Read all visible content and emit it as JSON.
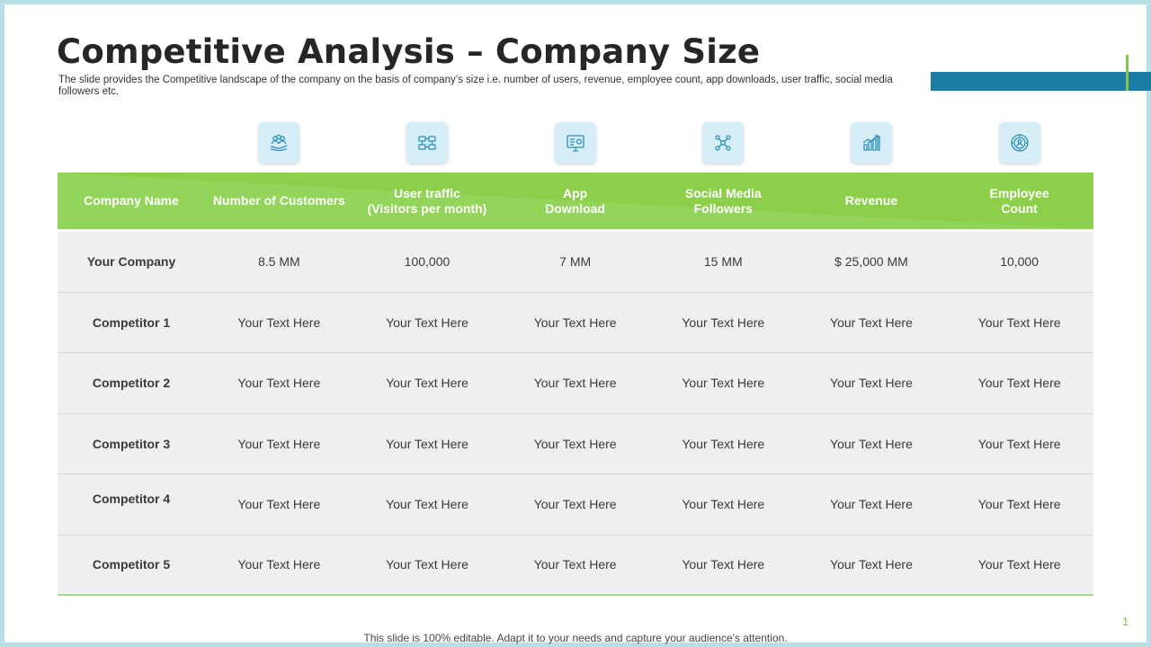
{
  "slide": {
    "title": "Competitive Analysis – Company Size",
    "subtitle": "The slide provides the Competitive landscape of the company on the basis of company’s size i.e. number of users, revenue, employee count, app downloads, user traffic, social media followers etc.",
    "footer": "This slide is 100% editable. Adapt it to your needs and capture your audience's attention.",
    "page_number": "1"
  },
  "colors": {
    "header_green": "#8bcf4b",
    "accent_blue": "#1b7ca6",
    "accent_green": "#8bc34a",
    "icon_bg": "#d6eef8",
    "row_bg": "#efefef"
  },
  "icons": [
    "customers-icon",
    "user-traffic-icon",
    "app-download-icon",
    "social-media-icon",
    "revenue-icon",
    "employee-icon"
  ],
  "table": {
    "headers": [
      "Company Name",
      "Number of Customers",
      "User traffic\n(Visitors per month)",
      "App\nDownload",
      "Social Media\nFollowers",
      "Revenue",
      "Employee\nCount"
    ],
    "rows": [
      {
        "name": "Your Company",
        "cells": [
          "8.5 MM",
          "100,000",
          "7 MM",
          "15 MM",
          "$ 25,000 MM",
          "10,000"
        ]
      },
      {
        "name": "Competitor 1",
        "cells": [
          "Your Text Here",
          "Your Text Here",
          "Your Text Here",
          "Your Text Here",
          "Your Text Here",
          "Your Text Here"
        ]
      },
      {
        "name": "Competitor 2",
        "cells": [
          "Your Text Here",
          "Your Text Here",
          "Your Text Here",
          "Your Text Here",
          "Your Text Here",
          "Your Text Here"
        ]
      },
      {
        "name": "Competitor 3",
        "cells": [
          "Your Text Here",
          "Your Text Here",
          "Your Text Here",
          "Your Text Here",
          "Your Text Here",
          "Your Text Here"
        ]
      },
      {
        "name": "Competitor 4",
        "cells": [
          "Your Text Here",
          "Your Text Here",
          "Your Text Here",
          "Your Text Here",
          "Your Text Here",
          "Your Text Here"
        ]
      },
      {
        "name": "Competitor 5",
        "cells": [
          "Your Text Here",
          "Your Text Here",
          "Your Text Here",
          "Your Text Here",
          "Your Text Here",
          "Your Text Here"
        ]
      }
    ]
  }
}
